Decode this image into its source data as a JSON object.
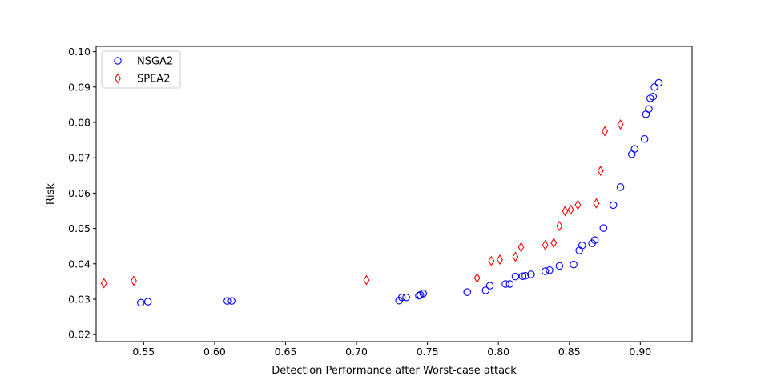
{
  "chart_data": {
    "type": "scatter",
    "xlabel": "Detection Performance after Worst-case attack",
    "ylabel": "Risk",
    "xlim": [
      0.5165,
      0.9365
    ],
    "ylim": [
      0.018,
      0.1015
    ],
    "x_ticks": [
      0.55,
      0.6,
      0.65,
      0.7,
      0.75,
      0.8,
      0.85,
      0.9
    ],
    "x_tick_labels": [
      "0.55",
      "0.60",
      "0.65",
      "0.70",
      "0.75",
      "0.80",
      "0.85",
      "0.90"
    ],
    "y_ticks": [
      0.02,
      0.03,
      0.04,
      0.05,
      0.06,
      0.07,
      0.08,
      0.09,
      0.1
    ],
    "y_tick_labels": [
      "0.02",
      "0.03",
      "0.04",
      "0.05",
      "0.06",
      "0.07",
      "0.08",
      "0.09",
      "0.10"
    ],
    "legend_position": "upper-left",
    "grid": false,
    "series": [
      {
        "name": "NSGA2",
        "marker": "circle",
        "color": "#0000ff",
        "points": [
          [
            0.548,
            0.029
          ],
          [
            0.553,
            0.0293
          ],
          [
            0.609,
            0.0295
          ],
          [
            0.612,
            0.0295
          ],
          [
            0.73,
            0.0296
          ],
          [
            0.732,
            0.0305
          ],
          [
            0.735,
            0.0305
          ],
          [
            0.744,
            0.031
          ],
          [
            0.745,
            0.0312
          ],
          [
            0.747,
            0.0316
          ],
          [
            0.778,
            0.032
          ],
          [
            0.791,
            0.0325
          ],
          [
            0.794,
            0.0338
          ],
          [
            0.805,
            0.0343
          ],
          [
            0.808,
            0.0343
          ],
          [
            0.812,
            0.0364
          ],
          [
            0.817,
            0.0365
          ],
          [
            0.819,
            0.0366
          ],
          [
            0.823,
            0.037
          ],
          [
            0.833,
            0.0379
          ],
          [
            0.836,
            0.0382
          ],
          [
            0.843,
            0.0394
          ],
          [
            0.853,
            0.0398
          ],
          [
            0.857,
            0.0438
          ],
          [
            0.859,
            0.0452
          ],
          [
            0.866,
            0.0458
          ],
          [
            0.868,
            0.0467
          ],
          [
            0.874,
            0.0501
          ],
          [
            0.881,
            0.0566
          ],
          [
            0.886,
            0.0617
          ],
          [
            0.894,
            0.071
          ],
          [
            0.896,
            0.0725
          ],
          [
            0.903,
            0.0753
          ],
          [
            0.904,
            0.0823
          ],
          [
            0.906,
            0.0838
          ],
          [
            0.907,
            0.0868
          ],
          [
            0.909,
            0.0873
          ],
          [
            0.91,
            0.09
          ],
          [
            0.913,
            0.0912
          ]
        ]
      },
      {
        "name": "SPEA2",
        "marker": "thin_diamond",
        "color": "#ff0000",
        "points": [
          [
            0.522,
            0.0345
          ],
          [
            0.543,
            0.0352
          ],
          [
            0.707,
            0.0354
          ],
          [
            0.785,
            0.036
          ],
          [
            0.795,
            0.0408
          ],
          [
            0.801,
            0.0412
          ],
          [
            0.812,
            0.042
          ],
          [
            0.816,
            0.0447
          ],
          [
            0.833,
            0.0453
          ],
          [
            0.839,
            0.0459
          ],
          [
            0.843,
            0.0507
          ],
          [
            0.847,
            0.0549
          ],
          [
            0.851,
            0.0553
          ],
          [
            0.856,
            0.0567
          ],
          [
            0.869,
            0.0571
          ],
          [
            0.872,
            0.0663
          ],
          [
            0.875,
            0.0775
          ],
          [
            0.886,
            0.0794
          ]
        ]
      }
    ]
  }
}
